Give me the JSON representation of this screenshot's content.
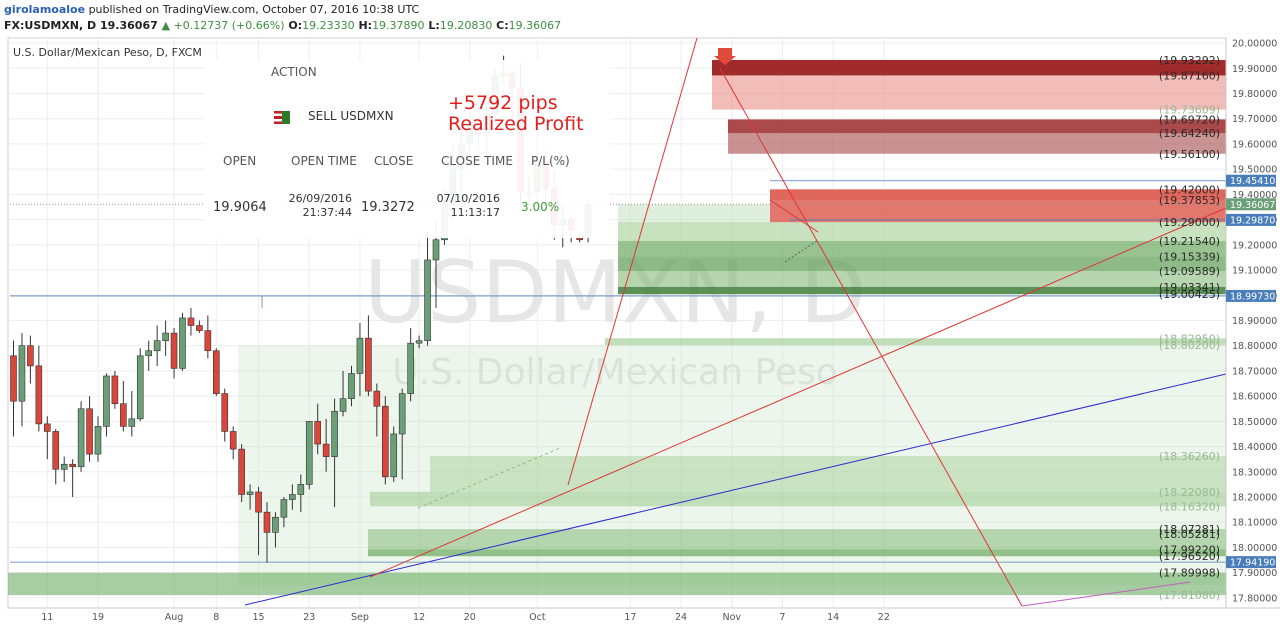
{
  "header": {
    "author": "girolamoaloe",
    "published_text": "published on TradingView.com, October 07, 2016 10:38 UTC",
    "symbol": "FX:USDMXN, D",
    "last": "19.36067",
    "change": "▲ +0.12737 (+0.66%)",
    "open_label": "O:",
    "open": "19.23330",
    "high_label": "H:",
    "high": "19.37890",
    "low_label": "L:",
    "low": "19.20830",
    "close_label": "C:",
    "close": "19.36067"
  },
  "chart_title": "U.S. Dollar/Mexican Peso, D, FXCM",
  "watermark": {
    "symbol": "USDMXN, D",
    "name": "U.S. Dollar/Mexican Peso"
  },
  "trade_panel": {
    "action_label": "ACTION",
    "action_value": "SELL USDMXN",
    "profit_pips": "+5792 pips",
    "profit_label": "Realized Profit",
    "columns": [
      "OPEN",
      "OPEN TIME",
      "CLOSE",
      "CLOSE TIME",
      "P/L(%)"
    ],
    "open": "19.9064",
    "open_date": "26/09/2016",
    "open_time": "21:37:44",
    "close": "19.3272",
    "close_date": "07/10/2016",
    "close_time": "11:13:17",
    "pl": "3.00%"
  },
  "colors": {
    "bull": "#6b9f78",
    "bear": "#d9473c",
    "price_tag": "#4a7ebb",
    "support": "#5a9c50",
    "resistance": "#c43a3a",
    "profit": "#e02020",
    "pl_green": "#3e9e3e"
  },
  "chart_data": {
    "type": "candlestick",
    "title": "U.S. Dollar/Mexican Peso, D, FXCM",
    "ylim": [
      17.76,
      20.02
    ],
    "y_ticks": [
      "20.00000",
      "19.90000",
      "19.80000",
      "19.70000",
      "19.60000",
      "19.50000",
      "19.40000",
      "19.30000",
      "19.20000",
      "19.10000",
      "19.00000",
      "18.90000",
      "18.80000",
      "18.70000",
      "18.60000",
      "18.50000",
      "18.40000",
      "18.30000",
      "18.20000",
      "18.10000",
      "18.00000",
      "17.90000",
      "17.80000"
    ],
    "x_ticks": [
      {
        "label": "11",
        "i": 4
      },
      {
        "label": "19",
        "i": 10
      },
      {
        "label": "Aug",
        "i": 19
      },
      {
        "label": "8",
        "i": 24
      },
      {
        "label": "15",
        "i": 29
      },
      {
        "label": "23",
        "i": 35
      },
      {
        "label": "Sep",
        "i": 41
      },
      {
        "label": "12",
        "i": 48
      },
      {
        "label": "20",
        "i": 54
      },
      {
        "label": "Oct",
        "i": 62
      },
      {
        "label": "17",
        "i": 73
      },
      {
        "label": "24",
        "i": 79
      },
      {
        "label": "Nov",
        "i": 85
      },
      {
        "label": "7",
        "i": 91
      },
      {
        "label": "14",
        "i": 97
      },
      {
        "label": "22",
        "i": 103
      }
    ],
    "candles": [
      [
        18.76,
        18.82,
        18.44,
        18.58
      ],
      [
        18.58,
        18.85,
        18.48,
        18.8
      ],
      [
        18.8,
        18.84,
        18.65,
        18.72
      ],
      [
        18.72,
        18.8,
        18.46,
        18.49
      ],
      [
        18.49,
        18.52,
        18.35,
        18.46
      ],
      [
        18.46,
        18.47,
        18.25,
        18.31
      ],
      [
        18.31,
        18.36,
        18.26,
        18.33
      ],
      [
        18.33,
        18.35,
        18.2,
        18.32
      ],
      [
        18.32,
        18.58,
        18.3,
        18.55
      ],
      [
        18.55,
        18.6,
        18.34,
        18.37
      ],
      [
        18.37,
        18.52,
        18.34,
        18.48
      ],
      [
        18.48,
        18.69,
        18.44,
        18.68
      ],
      [
        18.68,
        18.7,
        18.55,
        18.57
      ],
      [
        18.57,
        18.66,
        18.46,
        18.48
      ],
      [
        18.48,
        18.62,
        18.44,
        18.51
      ],
      [
        18.51,
        18.79,
        18.5,
        18.76
      ],
      [
        18.76,
        18.82,
        18.7,
        18.78
      ],
      [
        18.78,
        18.88,
        18.72,
        18.82
      ],
      [
        18.82,
        18.9,
        18.76,
        18.85
      ],
      [
        18.85,
        18.87,
        18.67,
        18.71
      ],
      [
        18.71,
        18.93,
        18.7,
        18.91
      ],
      [
        18.91,
        18.95,
        18.84,
        18.88
      ],
      [
        18.88,
        18.9,
        18.85,
        18.86
      ],
      [
        18.86,
        18.92,
        18.75,
        18.78
      ],
      [
        18.78,
        18.79,
        18.6,
        18.61
      ],
      [
        18.61,
        18.63,
        18.42,
        18.46
      ],
      [
        18.46,
        18.48,
        18.35,
        18.39
      ],
      [
        18.39,
        18.41,
        18.18,
        18.21
      ],
      [
        18.21,
        18.25,
        18.15,
        18.22
      ],
      [
        18.22,
        18.24,
        17.97,
        18.14
      ],
      [
        18.14,
        18.18,
        17.94,
        18.06
      ],
      [
        18.06,
        18.14,
        18.0,
        18.12
      ],
      [
        18.12,
        18.2,
        18.08,
        18.19
      ],
      [
        18.19,
        18.25,
        18.15,
        18.21
      ],
      [
        18.21,
        18.29,
        18.14,
        18.25
      ],
      [
        18.25,
        18.5,
        18.23,
        18.5
      ],
      [
        18.5,
        18.57,
        18.37,
        18.41
      ],
      [
        18.41,
        18.51,
        18.3,
        18.36
      ],
      [
        18.36,
        18.59,
        18.16,
        18.54
      ],
      [
        18.54,
        18.7,
        18.52,
        18.59
      ],
      [
        18.59,
        18.72,
        18.56,
        18.69
      ],
      [
        18.69,
        18.89,
        18.6,
        18.83
      ],
      [
        18.83,
        18.92,
        18.6,
        18.62
      ],
      [
        18.62,
        18.65,
        18.44,
        18.56
      ],
      [
        18.56,
        18.6,
        18.25,
        18.28
      ],
      [
        18.28,
        18.48,
        18.26,
        18.45
      ],
      [
        18.45,
        18.63,
        18.27,
        18.61
      ],
      [
        18.61,
        18.87,
        18.58,
        18.81
      ],
      [
        18.81,
        18.84,
        18.79,
        18.82
      ],
      [
        18.82,
        19.25,
        18.8,
        19.14
      ],
      [
        19.14,
        19.3,
        18.95,
        19.22
      ],
      [
        19.22,
        19.42,
        19.2,
        19.36
      ],
      [
        19.36,
        19.6,
        19.3,
        19.5
      ],
      [
        19.5,
        19.66,
        19.35,
        19.6
      ],
      [
        19.6,
        19.76,
        19.55,
        19.7
      ],
      [
        19.7,
        19.74,
        19.57,
        19.64
      ],
      [
        19.64,
        19.75,
        19.55,
        19.72
      ],
      [
        19.72,
        19.9,
        19.68,
        19.87
      ],
      [
        19.87,
        19.95,
        19.84,
        19.88
      ],
      [
        19.88,
        19.9,
        19.64,
        19.82
      ],
      [
        19.82,
        19.92,
        19.36,
        19.41
      ],
      [
        19.41,
        19.47,
        19.35,
        19.41
      ],
      [
        19.41,
        19.64,
        19.36,
        19.53
      ],
      [
        19.53,
        19.57,
        19.38,
        19.42
      ],
      [
        19.42,
        19.49,
        19.22,
        19.28
      ],
      [
        19.28,
        19.36,
        19.19,
        19.3
      ],
      [
        19.3,
        19.32,
        19.21,
        19.26
      ],
      [
        19.23,
        19.25,
        19.21,
        19.22
      ],
      [
        19.23,
        19.38,
        19.21,
        19.36
      ]
    ],
    "levels": [
      {
        "label": "19.93292",
        "value": 19.93292,
        "type": "resistance"
      },
      {
        "label": "19.87160",
        "value": 19.8716,
        "type": "resistance"
      },
      {
        "label": "19.73609",
        "value": 19.73609,
        "type": "resistance"
      },
      {
        "label": "19.69720",
        "value": 19.6972,
        "type": "resistance"
      },
      {
        "label": "19.64240",
        "value": 19.6424,
        "type": "resistance"
      },
      {
        "label": "19.56100",
        "value": 19.561,
        "type": "resistance"
      },
      {
        "label": "19.42000",
        "value": 19.42,
        "type": "resistance"
      },
      {
        "label": "19.37853",
        "value": 19.37853,
        "type": "resistance"
      },
      {
        "label": "19.29000",
        "value": 19.29,
        "type": "resistance"
      },
      {
        "label": "19.21540",
        "value": 19.2154,
        "type": "support"
      },
      {
        "label": "19.15339",
        "value": 19.15339,
        "type": "support"
      },
      {
        "label": "19.09589",
        "value": 19.09589,
        "type": "support"
      },
      {
        "label": "19.03341",
        "value": 19.03341,
        "type": "support"
      },
      {
        "label": "19.00425",
        "value": 19.00425,
        "type": "support"
      },
      {
        "label": "18.82950",
        "value": 18.8295,
        "type": "support"
      },
      {
        "label": "18.80200",
        "value": 18.802,
        "type": "support"
      },
      {
        "label": "18.36260",
        "value": 18.3626,
        "type": "support"
      },
      {
        "label": "18.22080",
        "value": 18.2208,
        "type": "support"
      },
      {
        "label": "18.16320",
        "value": 18.1632,
        "type": "support"
      },
      {
        "label": "18.07281",
        "value": 18.07281,
        "type": "support"
      },
      {
        "label": "18.05281",
        "value": 18.05281,
        "type": "support"
      },
      {
        "label": "17.99220",
        "value": 17.9922,
        "type": "support"
      },
      {
        "label": "17.96520",
        "value": 17.9652,
        "type": "support"
      },
      {
        "label": "17.89998",
        "value": 17.89998,
        "type": "support"
      },
      {
        "label": "17.81080",
        "value": 17.8108,
        "type": "support"
      }
    ],
    "price_tags": [
      {
        "label": "19.45410",
        "value": 19.4541,
        "color": "#4a7ebb"
      },
      {
        "label": "19.36067",
        "value": 19.36067,
        "color": "#6b9f78"
      },
      {
        "label": "19.29870",
        "value": 19.2987,
        "color": "#4a7ebb"
      },
      {
        "label": "18.99730",
        "value": 18.9973,
        "color": "#4a7ebb"
      },
      {
        "label": "17.94190",
        "value": 17.9419,
        "color": "#4a7ebb"
      }
    ]
  }
}
